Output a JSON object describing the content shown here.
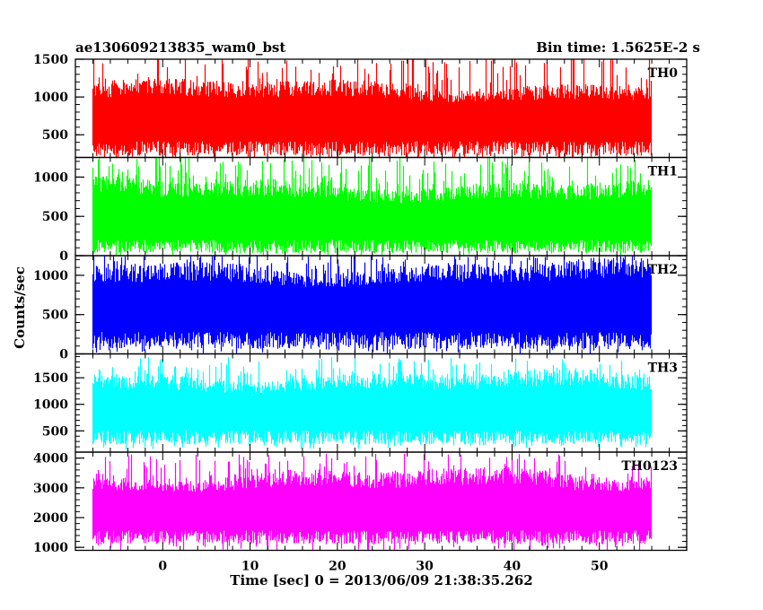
{
  "header": {
    "title": "ae130609213835_wam0_bst",
    "bin_time": "Bin time: 1.5625E-2 s"
  },
  "chart_data": {
    "type": "line",
    "xlabel": "Time [sec] 0 = 2013/06/09 21:38:35.262",
    "ylabel": "Counts/sec",
    "xlim": [
      -10,
      60
    ],
    "x_data_range": [
      -8,
      56
    ],
    "xticks": [
      0,
      10,
      20,
      30,
      40,
      50
    ],
    "grid": false,
    "panels": [
      {
        "name": "TH0",
        "color": "#ff0000",
        "ylim": [
          200,
          1500
        ],
        "yticks": [
          500,
          1000,
          1500
        ],
        "baseline": 690,
        "typical_low": 300,
        "typical_high": 1100,
        "peak_max": 1600,
        "trough_min": 150
      },
      {
        "name": "TH1",
        "color": "#00ff00",
        "ylim": [
          0,
          1250
        ],
        "yticks": [
          0,
          500,
          1000
        ],
        "baseline": 440,
        "typical_low": 100,
        "typical_high": 850,
        "peak_max": 1280,
        "trough_min": 0
      },
      {
        "name": "TH2",
        "color": "#0000ff",
        "ylim": [
          0,
          1250
        ],
        "yticks": [
          0,
          500,
          1000
        ],
        "baseline": 580,
        "typical_low": 150,
        "typical_high": 1050,
        "peak_max": 1280,
        "trough_min": 0
      },
      {
        "name": "TH3",
        "color": "#00ffff",
        "ylim": [
          100,
          1950
        ],
        "yticks": [
          500,
          1000,
          1500
        ],
        "baseline": 880,
        "typical_low": 350,
        "typical_high": 1450,
        "peak_max": 1900,
        "trough_min": 150
      },
      {
        "name": "TH0123",
        "color": "#ff00ff",
        "ylim": [
          900,
          4200
        ],
        "yticks": [
          1000,
          2000,
          3000,
          4000
        ],
        "baseline": 2200,
        "typical_low": 1300,
        "typical_high": 3300,
        "peak_max": 4150,
        "trough_min": 900
      }
    ]
  }
}
